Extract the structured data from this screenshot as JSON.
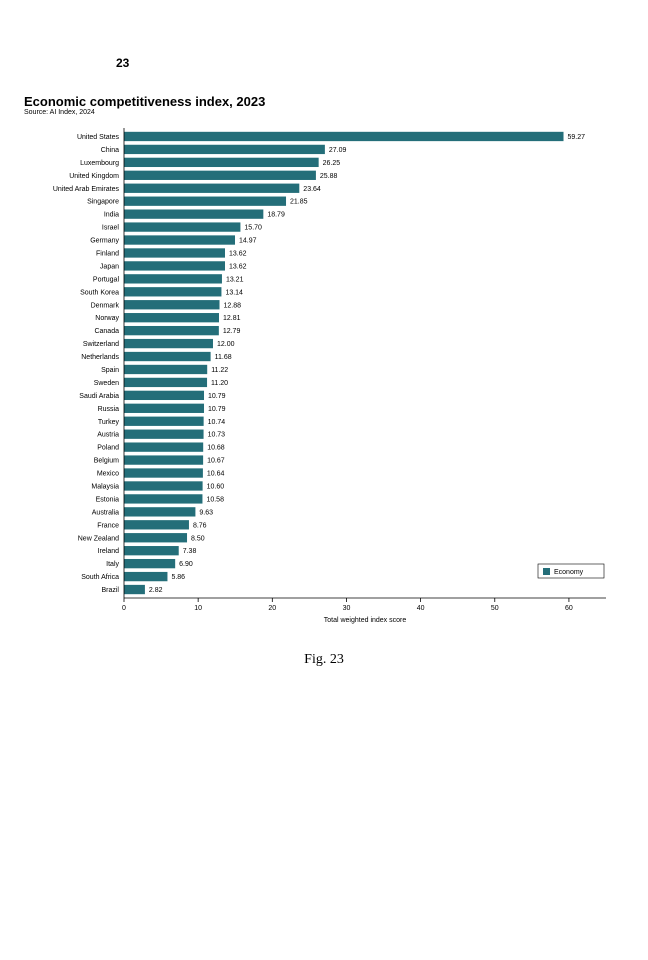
{
  "page_number": "23",
  "title": "Economic competitiveness index, 2023",
  "source": "Source: AI Index, 2024",
  "caption": "Fig. 23",
  "chart": {
    "type": "bar-horizontal",
    "bar_color": "#246e79",
    "background_color": "#ffffff",
    "axis_color": "#000000",
    "grid": false,
    "xlabel": "Total weighted index score",
    "xlim": [
      0,
      65
    ],
    "xticks": [
      0,
      10,
      20,
      30,
      40,
      50,
      60
    ],
    "legend": {
      "label": "Economy",
      "swatch": "#246e79"
    },
    "items": [
      {
        "label": "United States",
        "value": 59.27
      },
      {
        "label": "China",
        "value": 27.09
      },
      {
        "label": "Luxembourg",
        "value": 26.25
      },
      {
        "label": "United Kingdom",
        "value": 25.88
      },
      {
        "label": "United Arab Emirates",
        "value": 23.64
      },
      {
        "label": "Singapore",
        "value": 21.85
      },
      {
        "label": "India",
        "value": 18.79
      },
      {
        "label": "Israel",
        "value": 15.7
      },
      {
        "label": "Germany",
        "value": 14.97
      },
      {
        "label": "Finland",
        "value": 13.62
      },
      {
        "label": "Japan",
        "value": 13.62
      },
      {
        "label": "Portugal",
        "value": 13.21
      },
      {
        "label": "South Korea",
        "value": 13.14
      },
      {
        "label": "Denmark",
        "value": 12.88
      },
      {
        "label": "Norway",
        "value": 12.81
      },
      {
        "label": "Canada",
        "value": 12.79
      },
      {
        "label": "Switzerland",
        "value": 12.0
      },
      {
        "label": "Netherlands",
        "value": 11.68
      },
      {
        "label": "Spain",
        "value": 11.22
      },
      {
        "label": "Sweden",
        "value": 11.2
      },
      {
        "label": "Saudi Arabia",
        "value": 10.79
      },
      {
        "label": "Russia",
        "value": 10.79
      },
      {
        "label": "Turkey",
        "value": 10.74
      },
      {
        "label": "Austria",
        "value": 10.73
      },
      {
        "label": "Poland",
        "value": 10.68
      },
      {
        "label": "Belgium",
        "value": 10.67
      },
      {
        "label": "Mexico",
        "value": 10.64
      },
      {
        "label": "Malaysia",
        "value": 10.6
      },
      {
        "label": "Estonia",
        "value": 10.58
      },
      {
        "label": "Australia",
        "value": 9.63
      },
      {
        "label": "France",
        "value": 8.76
      },
      {
        "label": "New Zealand",
        "value": 8.5
      },
      {
        "label": "Ireland",
        "value": 7.38
      },
      {
        "label": "Italy",
        "value": 6.9
      },
      {
        "label": "South Africa",
        "value": 5.86
      },
      {
        "label": "Brazil",
        "value": 2.82
      }
    ]
  }
}
